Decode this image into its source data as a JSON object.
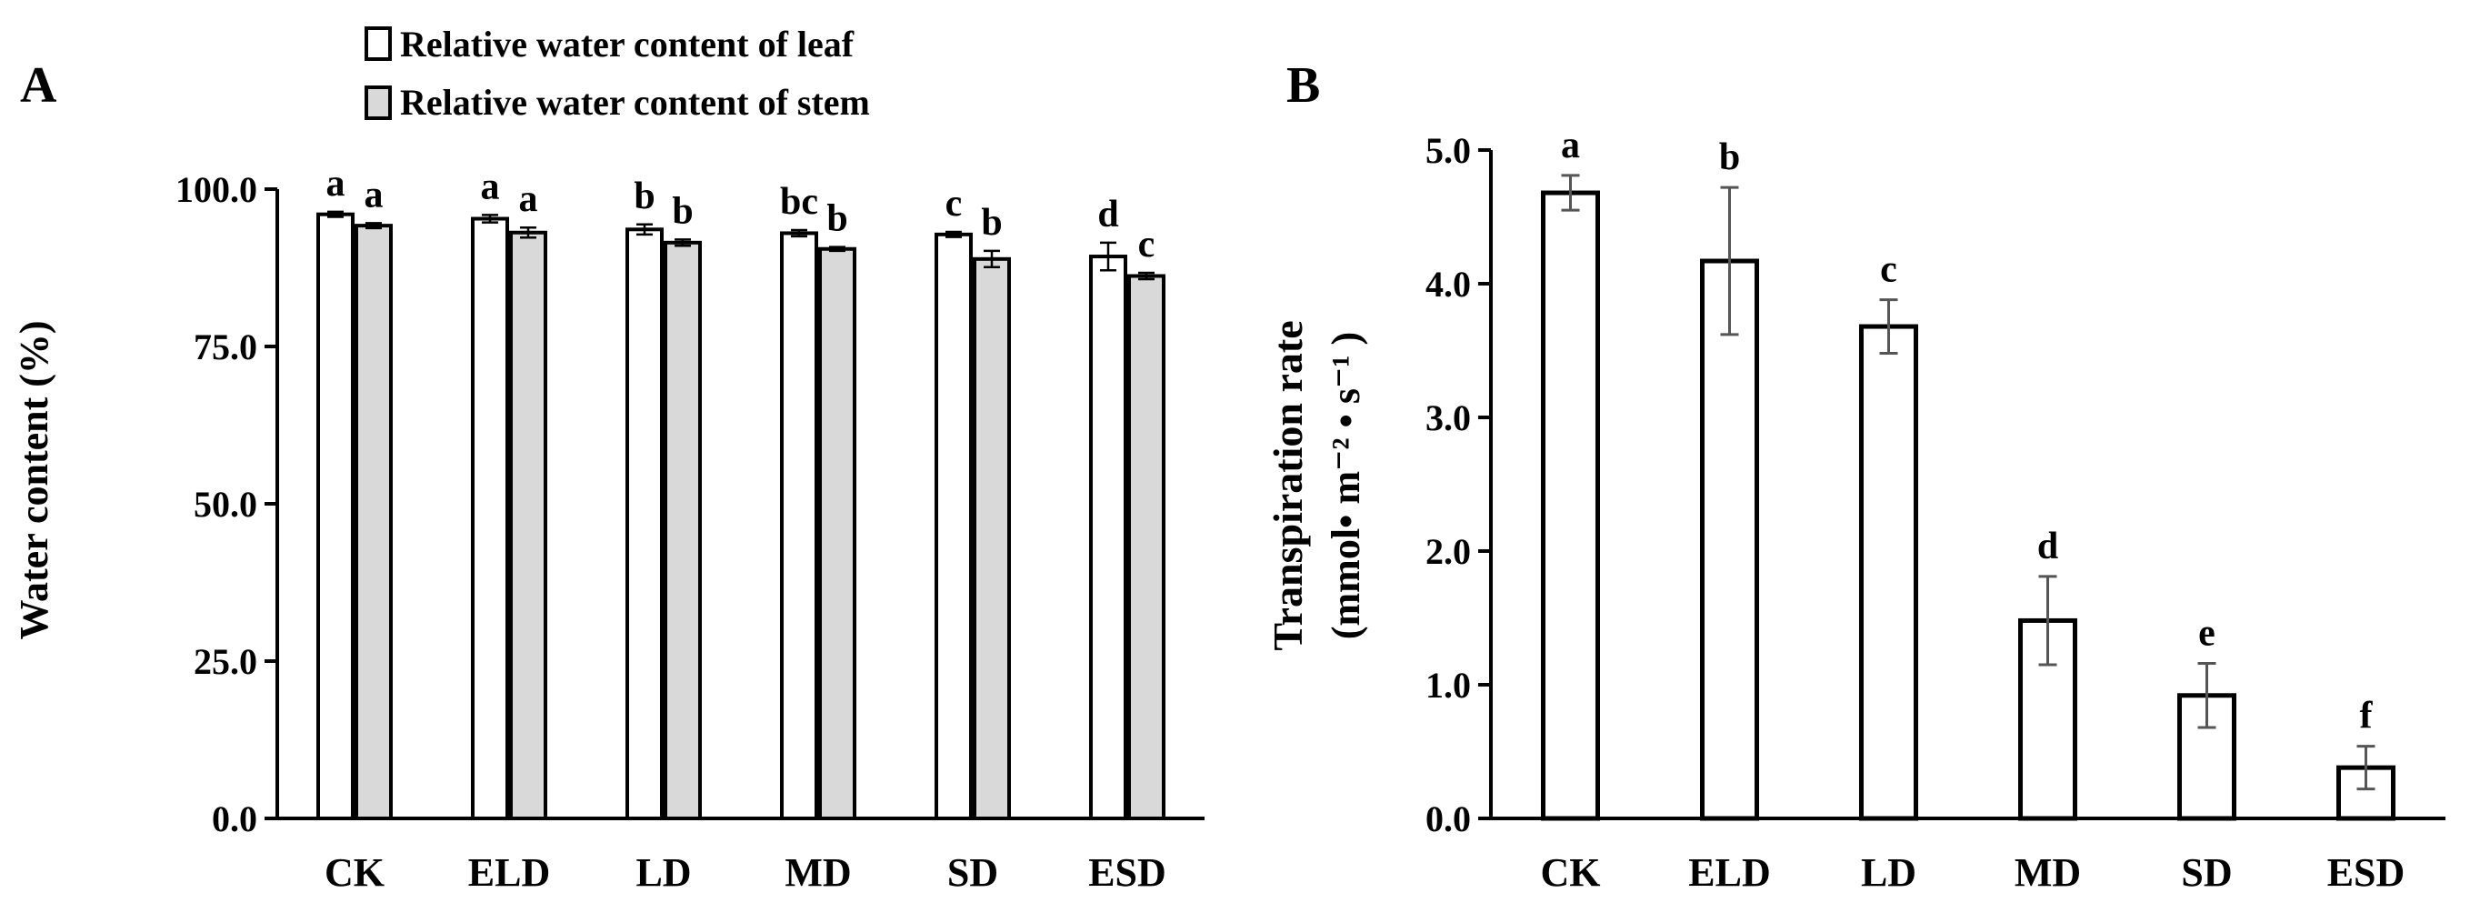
{
  "chart_data": [
    {
      "panel_label": "A",
      "type": "bar",
      "categories": [
        "CK",
        "ELD",
        "LD",
        "MD",
        "SD",
        "ESD"
      ],
      "series": [
        {
          "name": "Relative water content of leaf",
          "values": [
            96.0,
            95.3,
            93.6,
            93.0,
            92.8,
            89.3
          ],
          "errors": [
            0.4,
            0.6,
            0.8,
            0.5,
            0.4,
            2.2
          ],
          "letters": [
            "a",
            "a",
            "b",
            "bc",
            "c",
            "d"
          ],
          "color": "#ffffff"
        },
        {
          "name": "Relative water content of stem",
          "values": [
            94.2,
            93.1,
            91.5,
            90.5,
            88.9,
            86.2
          ],
          "errors": [
            0.4,
            0.8,
            0.5,
            0.3,
            1.3,
            0.5
          ],
          "letters": [
            "a",
            "a",
            "b",
            "b",
            "b",
            "c"
          ],
          "color": "#d9d9d9"
        }
      ],
      "ylabel": "Water content (%)",
      "ylim": [
        0,
        100
      ],
      "yticks": [
        "0.0",
        "25.0",
        "50.0",
        "75.0",
        "100.0"
      ],
      "legend_position": "top",
      "grid": false
    },
    {
      "panel_label": "B",
      "type": "bar",
      "categories": [
        "CK",
        "ELD",
        "LD",
        "MD",
        "SD",
        "ESD"
      ],
      "series": [
        {
          "values": [
            4.68,
            4.17,
            3.68,
            1.48,
            0.92,
            0.38
          ],
          "errors": [
            0.13,
            0.55,
            0.2,
            0.33,
            0.24,
            0.16
          ],
          "letters": [
            "a",
            "b",
            "c",
            "d",
            "e",
            "f"
          ],
          "color": "#ffffff"
        }
      ],
      "ylabel_line1": "Transpiration rate",
      "ylabel_line2": "(mmol• m⁻² • s⁻¹ )",
      "ylim": [
        0,
        5
      ],
      "yticks": [
        "0.0",
        "1.0",
        "2.0",
        "3.0",
        "4.0",
        "5.0"
      ],
      "grid": false
    }
  ]
}
